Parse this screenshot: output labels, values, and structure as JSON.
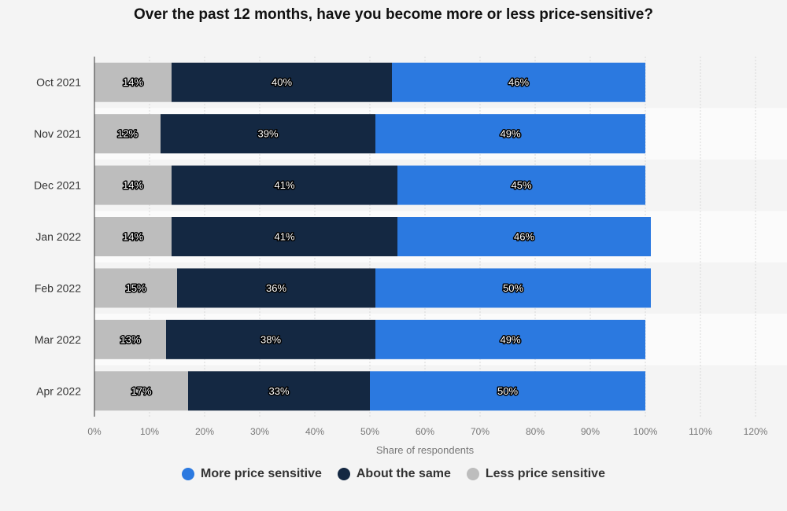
{
  "chart_data": {
    "type": "bar",
    "orientation": "horizontal",
    "stacked": true,
    "title": "Over the past 12 months, have you become more or less price-sensitive?",
    "xlabel": "Share of respondents",
    "ylabel": "",
    "xlim": [
      0,
      120
    ],
    "x_ticks": [
      "0%",
      "10%",
      "20%",
      "30%",
      "40%",
      "50%",
      "60%",
      "70%",
      "80%",
      "90%",
      "100%",
      "110%",
      "120%"
    ],
    "categories": [
      "Oct 2021",
      "Nov 2021",
      "Dec 2021",
      "Jan 2022",
      "Feb 2022",
      "Mar 2022",
      "Apr 2022"
    ],
    "series": [
      {
        "name": "Less price sensitive",
        "color": "#bdbdbd",
        "values": [
          14,
          12,
          14,
          14,
          15,
          13,
          17
        ]
      },
      {
        "name": "About the same",
        "color": "#142842",
        "values": [
          40,
          39,
          41,
          41,
          36,
          38,
          33
        ]
      },
      {
        "name": "More price sensitive",
        "color": "#2b79e0",
        "values": [
          46,
          49,
          45,
          46,
          50,
          49,
          50
        ]
      }
    ],
    "legend_order": [
      "More price sensitive",
      "About the same",
      "Less price sensitive"
    ],
    "legend_position": "bottom",
    "grid": true
  }
}
